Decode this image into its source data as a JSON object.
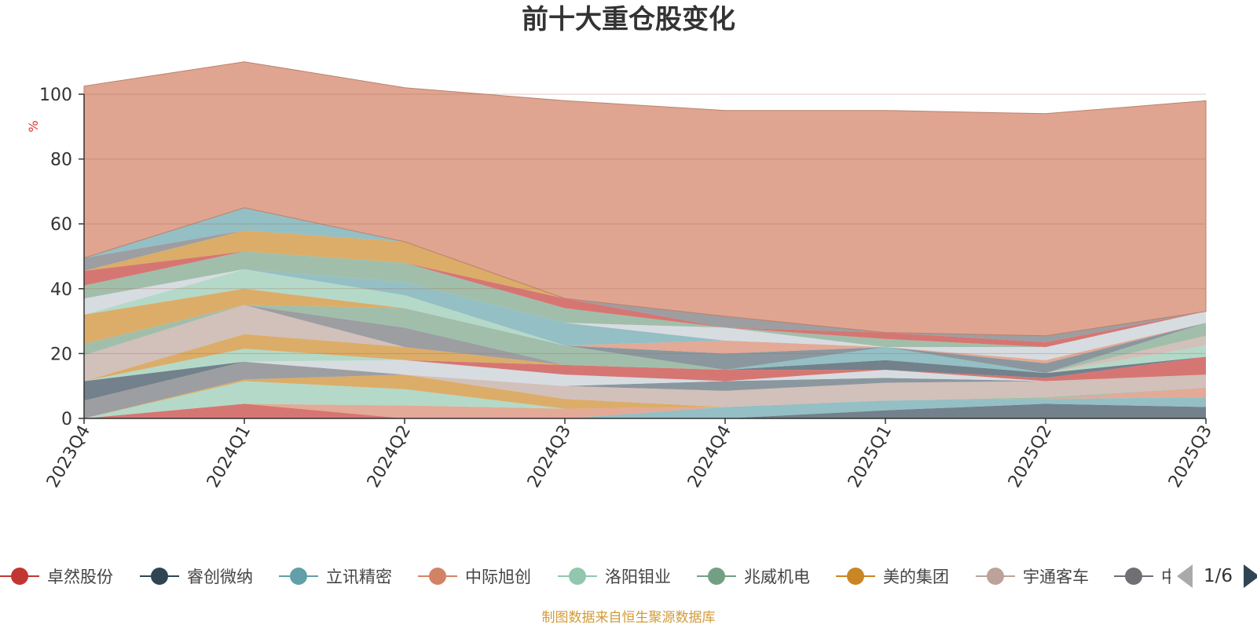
{
  "chart_data": {
    "type": "area",
    "stacked": true,
    "title": "前十大重仓股变化",
    "ylabel": "%",
    "ylim": [
      0,
      100
    ],
    "yticks": [
      0,
      20,
      40,
      60,
      80,
      100
    ],
    "categories": [
      "2023Q4",
      "2024Q1",
      "2024Q2",
      "2024Q3",
      "2024Q4",
      "2025Q1",
      "2025Q2",
      "2025Q3"
    ],
    "series": [
      {
        "name": "卓然股份",
        "color": "#c23531",
        "values": [
          0.0,
          4.5,
          0.0,
          0.0,
          0.0,
          0.0,
          0.0,
          0.0
        ]
      },
      {
        "name": "睿创微纳",
        "color": "#2f4554",
        "values": [
          0.0,
          0.0,
          0.0,
          0.0,
          0.0,
          2.5,
          4.5,
          3.5
        ]
      },
      {
        "name": "立讯精密",
        "color": "#61a0a8",
        "values": [
          0.0,
          0.0,
          0.0,
          0.0,
          3.5,
          3.0,
          1.5,
          3.0
        ]
      },
      {
        "name": "中际旭创",
        "color": "#d48265",
        "values": [
          0.0,
          0.0,
          4.0,
          3.0,
          0.0,
          0.0,
          0.0,
          3.0
        ]
      },
      {
        "name": "洛阳钼业",
        "color": "#91c7ae",
        "values": [
          0.0,
          7.0,
          5.0,
          0.0,
          0.0,
          0.0,
          0.0,
          0.0
        ]
      },
      {
        "name": "兆威机电",
        "color": "#749f83",
        "values": [
          0.0,
          0.0,
          0.0,
          0.0,
          0.0,
          0.0,
          0.5,
          0.0
        ]
      },
      {
        "name": "美的集团",
        "color": "#ca8622",
        "values": [
          0.0,
          0.5,
          4.5,
          3.0,
          0.0,
          0.0,
          0.0,
          0.0
        ]
      },
      {
        "name": "宇通客车",
        "color": "#bda29a",
        "values": [
          0.0,
          0.0,
          0.0,
          4.0,
          5.0,
          5.5,
          5.0,
          4.0
        ]
      },
      {
        "color": "#6e7074",
        "values": [
          5.5,
          5.5,
          0.0,
          0.0,
          0.0,
          0.0,
          0.0,
          0.0
        ]
      },
      {
        "color": "#546570",
        "values": [
          0.0,
          0.0,
          0.0,
          0.0,
          3.0,
          1.5,
          0.0,
          0.0
        ]
      },
      {
        "color": "#c4ccd3",
        "values": [
          0.0,
          0.0,
          4.5,
          3.5,
          0.0,
          2.5,
          0.0,
          0.0
        ]
      },
      {
        "color": "#c23531",
        "values": [
          0.0,
          0.0,
          0.0,
          3.0,
          3.5,
          0.0,
          1.0,
          5.5
        ]
      },
      {
        "color": "#2f4554",
        "values": [
          6.0,
          0.0,
          0.0,
          0.0,
          0.0,
          3.0,
          1.5,
          0.0
        ]
      },
      {
        "color": "#91c7ae",
        "values": [
          0.0,
          4.0,
          0.0,
          0.0,
          0.0,
          0.0,
          0.0,
          3.5
        ]
      },
      {
        "color": "#ca8622",
        "values": [
          0.0,
          4.5,
          4.0,
          0.0,
          0.0,
          0.0,
          0.0,
          0.0
        ]
      },
      {
        "color": "#bda29a",
        "values": [
          8.0,
          9.0,
          0.0,
          0.0,
          0.0,
          0.0,
          0.0,
          3.0
        ]
      },
      {
        "color": "#6e7074",
        "values": [
          0.0,
          0.0,
          6.0,
          0.0,
          0.0,
          0.0,
          0.0,
          0.0
        ]
      },
      {
        "color": "#61a0a8",
        "values": [
          0.0,
          0.0,
          0.0,
          0.0,
          0.0,
          4.0,
          0.0,
          0.0
        ]
      },
      {
        "color": "#749f83",
        "values": [
          3.5,
          0.0,
          6.0,
          6.0,
          0.0,
          0.0,
          0.0,
          4.0
        ]
      },
      {
        "color": "#546570",
        "values": [
          0.0,
          0.0,
          0.0,
          0.0,
          5.0,
          0.0,
          3.0,
          0.0
        ]
      },
      {
        "color": "#ca8622",
        "values": [
          9.0,
          5.0,
          0.0,
          0.0,
          0.0,
          0.0,
          0.0,
          0.0
        ]
      },
      {
        "color": "#d48265",
        "values": [
          0.0,
          0.0,
          0.0,
          0.0,
          4.0,
          0.0,
          1.0,
          0.0
        ]
      },
      {
        "color": "#91c7ae",
        "values": [
          0.0,
          6.0,
          4.0,
          0.0,
          0.0,
          0.0,
          0.0,
          0.0
        ]
      },
      {
        "color": "#61a0a8",
        "values": [
          0.0,
          0.0,
          4.0,
          7.0,
          0.0,
          0.0,
          0.0,
          0.0
        ]
      },
      {
        "color": "#c4ccd3",
        "values": [
          5.0,
          0.0,
          0.0,
          0.0,
          4.0,
          0.0,
          4.0,
          3.5
        ]
      },
      {
        "color": "#749f83",
        "values": [
          4.0,
          5.5,
          6.0,
          4.5,
          0.0,
          2.5,
          0.0,
          0.0
        ]
      },
      {
        "color": "#c23531",
        "values": [
          4.5,
          0.0,
          0.0,
          3.0,
          0.0,
          2.0,
          1.5,
          0.0
        ]
      },
      {
        "color": "#ca8622",
        "values": [
          0.0,
          6.5,
          6.5,
          0.0,
          0.0,
          0.0,
          0.0,
          0.0
        ]
      },
      {
        "color": "#6e7074",
        "values": [
          4.0,
          0.0,
          0.0,
          0.0,
          3.5,
          0.0,
          2.0,
          0.0
        ]
      },
      {
        "color": "#61a0a8",
        "values": [
          0.0,
          7.0,
          0.0,
          0.0,
          0.0,
          0.0,
          0.0,
          0.0
        ]
      },
      {
        "color": "#d48265",
        "values": [
          53.0,
          45.0,
          47.5,
          61.0,
          63.5,
          68.5,
          68.5,
          65.0
        ]
      }
    ]
  },
  "legend": {
    "items": [
      {
        "label": "卓然股份",
        "color": "#c23531"
      },
      {
        "label": "睿创微纳",
        "color": "#2f4554"
      },
      {
        "label": "立讯精密",
        "color": "#61a0a8"
      },
      {
        "label": "中际旭创",
        "color": "#d48265"
      },
      {
        "label": "洛阳钼业",
        "color": "#91c7ae"
      },
      {
        "label": "兆威机电",
        "color": "#749f83"
      },
      {
        "label": "美的集团",
        "color": "#ca8622"
      },
      {
        "label": "宇通客车",
        "color": "#bda29a"
      },
      {
        "label": "中",
        "color": "#6e7074"
      }
    ],
    "page_text": "1/6"
  },
  "source_note": "制图数据来自恒生聚源数据库"
}
